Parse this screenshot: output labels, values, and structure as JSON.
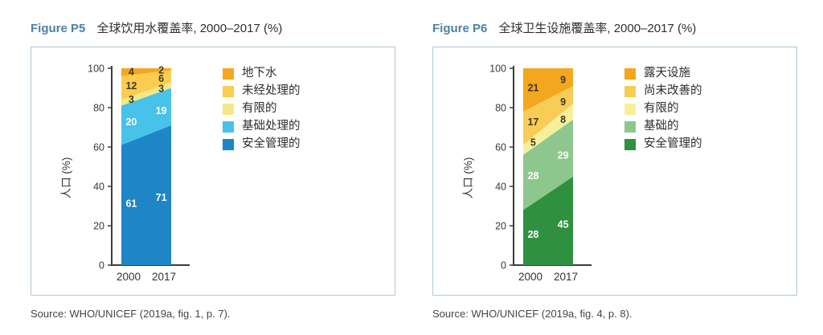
{
  "axis_color": "#3c3c3c",
  "chart_data": [
    {
      "type": "area",
      "figure_label": "Figure P5",
      "title": "全球饮用水覆盖率, 2000–2017 (%)",
      "x": [
        "2000",
        "2017"
      ],
      "ylabel": "人口 (%)",
      "ylim": [
        0,
        100
      ],
      "yticks": [
        0,
        20,
        40,
        60,
        80,
        100
      ],
      "grid": false,
      "legend_position": "right-inside",
      "series": [
        {
          "name": "安全管理的",
          "color": "#1E86C7",
          "values": [
            61,
            71
          ],
          "label_color": "#ffffff"
        },
        {
          "name": "基础处理的",
          "color": "#47C2E9",
          "values": [
            20,
            19
          ],
          "label_color": "#ffffff"
        },
        {
          "name": "有限的",
          "color": "#F3E886",
          "values": [
            3,
            3
          ],
          "label_color": "#3f3a22"
        },
        {
          "name": "未经处理的",
          "color": "#FACC4F",
          "values": [
            12,
            6
          ],
          "label_color": "#3f3a22"
        },
        {
          "name": "地下水",
          "color": "#F4A71F",
          "values": [
            4,
            2
          ],
          "label_color": "#3f3a22"
        }
      ],
      "source": "Source: WHO/UNICEF (2019a, fig. 1, p. 7)."
    },
    {
      "type": "area",
      "figure_label": "Figure P6",
      "title": "全球卫生设施覆盖率, 2000–2017 (%)",
      "x": [
        "2000",
        "2017"
      ],
      "ylabel": "人口 (%)",
      "ylim": [
        0,
        100
      ],
      "yticks": [
        0,
        20,
        40,
        60,
        80,
        100
      ],
      "grid": false,
      "legend_position": "right-inside",
      "series": [
        {
          "name": "安全管理的",
          "color": "#2F9040",
          "values": [
            28,
            45
          ],
          "label_color": "#ffffff"
        },
        {
          "name": "基础的",
          "color": "#8EC78E",
          "values": [
            28,
            29
          ],
          "label_color": "#ffffff"
        },
        {
          "name": "有限的",
          "color": "#F8EF9E",
          "values": [
            5,
            8
          ],
          "label_color": "#3f3a22"
        },
        {
          "name": "尚未改善的",
          "color": "#F8CD55",
          "values": [
            17,
            9
          ],
          "label_color": "#3f3a22"
        },
        {
          "name": "露天设施",
          "color": "#F2A71E",
          "values": [
            21,
            9
          ],
          "label_color": "#3f3a22"
        }
      ],
      "source": "Source: WHO/UNICEF (2019a, fig. 4, p. 8)."
    }
  ]
}
